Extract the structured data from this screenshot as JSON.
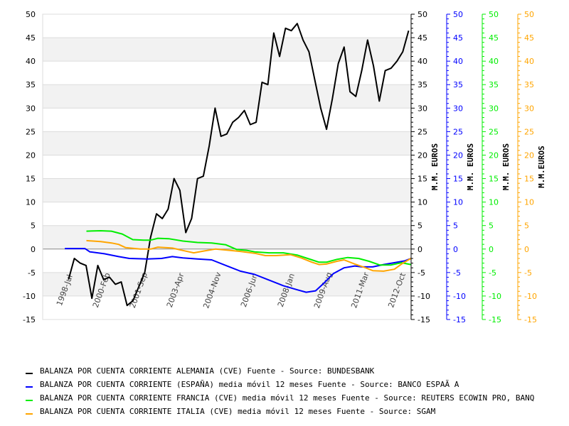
{
  "chart_data": {
    "type": "line",
    "title": "",
    "xlabel": "",
    "ylim": [
      -15,
      50
    ],
    "y_ticks": [
      -15,
      -10,
      -5,
      0,
      5,
      10,
      15,
      20,
      25,
      30,
      35,
      40,
      45,
      50
    ],
    "x_range": [
      1997.45,
      2012.45
    ],
    "x_tick_labels": [
      {
        "label": "1998-Jul",
        "t": 1998.5
      },
      {
        "label": "2000-Feb",
        "t": 2000.08
      },
      {
        "label": "2001-Sep",
        "t": 2001.67
      },
      {
        "label": "2003-Apr",
        "t": 2003.25
      },
      {
        "label": "2004-Nov",
        "t": 2004.83
      },
      {
        "label": "2006-Jun",
        "t": 2006.42
      },
      {
        "label": "2008-Jan",
        "t": 2008.0
      },
      {
        "label": "2009-Aug",
        "t": 2009.58
      },
      {
        "label": "2011-Mar",
        "t": 2011.17
      },
      {
        "label": "2012-Oct",
        "t": 2012.75
      }
    ],
    "right_axes": [
      {
        "title": "M.M. EUROS",
        "color": "#000000"
      },
      {
        "title": "M.M. EUROS",
        "color": "#0000ff"
      },
      {
        "title": "M.M. EUROS",
        "color": "#00ee00"
      },
      {
        "title": "M.M.EUROS",
        "color": "#ffa500"
      }
    ],
    "grid": true,
    "legend_position": "bottom",
    "series": [
      {
        "name": "BALANZA POR CUENTA CORRIENTE ALEMANIA (CVE)  Fuente - Source: BUNDESBANK",
        "color": "#000000",
        "x_start": 1998.5,
        "x_end": 2012.35,
        "values": [
          -6.5,
          -2,
          -3,
          -3.5,
          -10.5,
          -3.5,
          -6.5,
          -6,
          -7.5,
          -7,
          -12,
          -11,
          -8,
          -5,
          2.5,
          7.5,
          6.5,
          8.5,
          15,
          12.5,
          3.5,
          6.5,
          15,
          15.5,
          22,
          30,
          24,
          24.5,
          27,
          28,
          29.5,
          26.5,
          27,
          35.5,
          35,
          46,
          41,
          47,
          46.5,
          48,
          44.5,
          42,
          36,
          30,
          25.5,
          32,
          39.5,
          43,
          33.5,
          32.5,
          38,
          44.5,
          39,
          31.5,
          38,
          38.5,
          40,
          42,
          46.5
        ]
      },
      {
        "name": "BALANZA POR CUENTA CORRIENTE (ESPAÑA) media móvil 12 meses  Fuente - Source: BANCO ESPAÃ A",
        "color": "#0000ff",
        "points": [
          [
            1998.35,
            0.1
          ],
          [
            1999.17,
            0.1
          ],
          [
            1999.37,
            -0.6
          ],
          [
            1999.96,
            -1
          ],
          [
            2000.54,
            -1.6
          ],
          [
            2000.98,
            -2
          ],
          [
            2001.71,
            -2.1
          ],
          [
            2002.29,
            -2.0
          ],
          [
            2002.73,
            -1.6
          ],
          [
            2003.16,
            -1.9
          ],
          [
            2003.75,
            -2.1
          ],
          [
            2004.33,
            -2.3
          ],
          [
            2004.91,
            -3.5
          ],
          [
            2005.5,
            -4.7
          ],
          [
            2006.08,
            -5.4
          ],
          [
            2006.66,
            -6.6
          ],
          [
            2007.25,
            -7.8
          ],
          [
            2007.83,
            -8.7
          ],
          [
            2008.18,
            -9.2
          ],
          [
            2008.56,
            -8.9
          ],
          [
            2008.85,
            -7.5
          ],
          [
            2009.29,
            -5.2
          ],
          [
            2009.72,
            -4.0
          ],
          [
            2010.16,
            -3.6
          ],
          [
            2010.45,
            -3.8
          ],
          [
            2010.89,
            -3.8
          ],
          [
            2011.33,
            -3.3
          ],
          [
            2011.77,
            -2.9
          ],
          [
            2012.2,
            -2.5
          ],
          [
            2012.44,
            -2.0
          ]
        ]
      },
      {
        "name": "BALANZA POR CUENTA CORRIENTE FRANCIA (CVE) media móvil 12 meses  Fuente - Source: REUTERS ECOWIN PRO, BANQ",
        "color": "#00ee00",
        "points": [
          [
            1999.23,
            3.8
          ],
          [
            1999.81,
            3.9
          ],
          [
            2000.25,
            3.8
          ],
          [
            2000.69,
            3.2
          ],
          [
            2001.12,
            2.0
          ],
          [
            2001.56,
            1.9
          ],
          [
            2001.85,
            1.9
          ],
          [
            2002.14,
            2.3
          ],
          [
            2002.58,
            2.2
          ],
          [
            2003.16,
            1.7
          ],
          [
            2003.75,
            1.4
          ],
          [
            2004.33,
            1.3
          ],
          [
            2004.91,
            0.9
          ],
          [
            2005.35,
            -0.1
          ],
          [
            2005.79,
            -0.3
          ],
          [
            2006.08,
            -0.6
          ],
          [
            2006.66,
            -0.8
          ],
          [
            2007.25,
            -0.8
          ],
          [
            2007.83,
            -1.3
          ],
          [
            2008.41,
            -2.3
          ],
          [
            2008.7,
            -2.8
          ],
          [
            2009.0,
            -2.8
          ],
          [
            2009.43,
            -2.2
          ],
          [
            2009.87,
            -1.8
          ],
          [
            2010.31,
            -2.0
          ],
          [
            2010.74,
            -2.6
          ],
          [
            2011.18,
            -3.4
          ],
          [
            2011.62,
            -3.4
          ],
          [
            2012.06,
            -2.9
          ],
          [
            2012.44,
            -3.3
          ]
        ]
      },
      {
        "name": "BALANZA POR CUENTA CORRIENTE ITALIA (CVE) media móvil 12 meses  Fuente - Source: SGAM",
        "color": "#ffa500",
        "points": [
          [
            1999.23,
            1.8
          ],
          [
            1999.81,
            1.6
          ],
          [
            2000.25,
            1.3
          ],
          [
            2000.54,
            1.0
          ],
          [
            2000.83,
            0.3
          ],
          [
            2001.42,
            0.0
          ],
          [
            2001.85,
            0.0
          ],
          [
            2002.14,
            0.4
          ],
          [
            2002.73,
            0.2
          ],
          [
            2003.16,
            -0.3
          ],
          [
            2003.6,
            -0.8
          ],
          [
            2004.04,
            -0.4
          ],
          [
            2004.48,
            0.0
          ],
          [
            2004.91,
            -0.2
          ],
          [
            2005.5,
            -0.5
          ],
          [
            2006.08,
            -0.9
          ],
          [
            2006.52,
            -1.4
          ],
          [
            2006.95,
            -1.4
          ],
          [
            2007.54,
            -1.2
          ],
          [
            2007.98,
            -1.9
          ],
          [
            2008.41,
            -2.8
          ],
          [
            2008.7,
            -3.3
          ],
          [
            2009.0,
            -3.2
          ],
          [
            2009.43,
            -2.6
          ],
          [
            2009.72,
            -2.3
          ],
          [
            2010.16,
            -3.2
          ],
          [
            2010.6,
            -4.0
          ],
          [
            2010.89,
            -4.6
          ],
          [
            2011.33,
            -4.7
          ],
          [
            2011.77,
            -4.3
          ],
          [
            2012.06,
            -3.2
          ],
          [
            2012.44,
            -2.0
          ]
        ]
      }
    ]
  }
}
